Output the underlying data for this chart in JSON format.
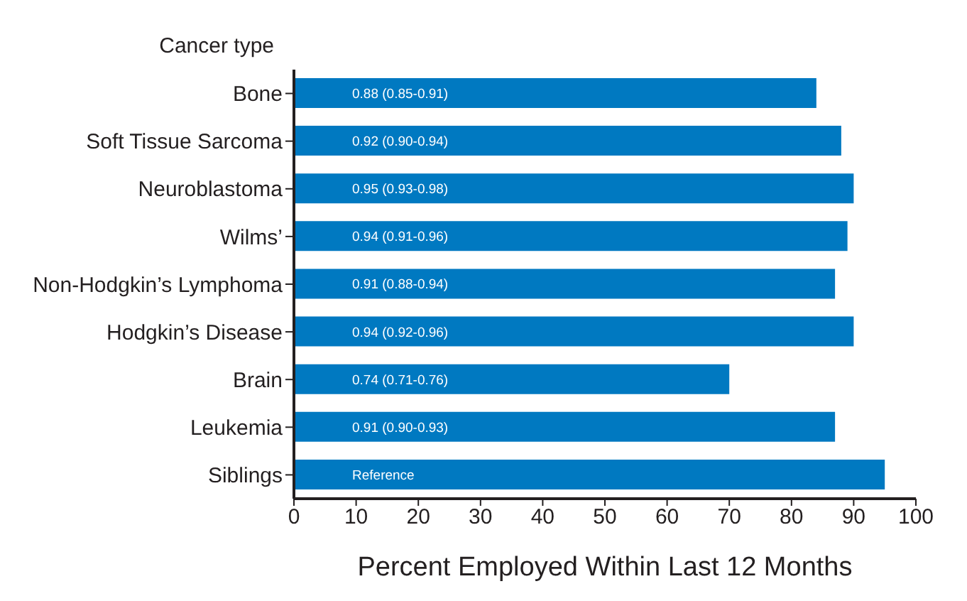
{
  "chart_data": {
    "type": "bar",
    "orientation": "horizontal",
    "xlabel": "Percent Employed Within Last 12 Months",
    "ylabel": "Cancer type",
    "categories": [
      "Bone",
      "Soft Tissue Sarcoma",
      "Neuroblastoma",
      "Wilms’",
      "Non-Hodgkin’s Lymphoma",
      "Hodgkin’s Disease",
      "Brain",
      "Leukemia",
      "Siblings"
    ],
    "values": [
      84,
      88,
      90,
      89,
      87,
      90,
      70,
      87,
      95
    ],
    "annotations": [
      {
        "text": "0.88 (0.85-0.91)",
        "y": "Bone"
      },
      {
        "text": "0.92 (0.90-0.94)",
        "y": "Soft Tissue Sarcoma"
      },
      {
        "text": "0.95 (0.93-0.98)",
        "y": "Neuroblastoma"
      },
      {
        "text": "0.94 (0.91-0.96)",
        "y": "Wilms’"
      },
      {
        "text": "0.91 (0.88-0.94)",
        "y": "Non-Hodgkin’s Lymphoma"
      },
      {
        "text": "0.94 (0.92-0.96)",
        "y": "Hodgkin’s Disease"
      },
      {
        "text": "0.74 (0.71-0.76)",
        "y": "Brain"
      },
      {
        "text": "0.91 (0.90-0.93)",
        "y": "Leukemia"
      },
      {
        "text": "Reference",
        "y": "Siblings"
      }
    ],
    "color": "#0079c1",
    "xlim": [
      0,
      100
    ],
    "xticks": [
      0,
      10,
      20,
      30,
      40,
      50,
      60,
      70,
      80,
      90,
      100
    ],
    "grid": false,
    "legend": false
  }
}
